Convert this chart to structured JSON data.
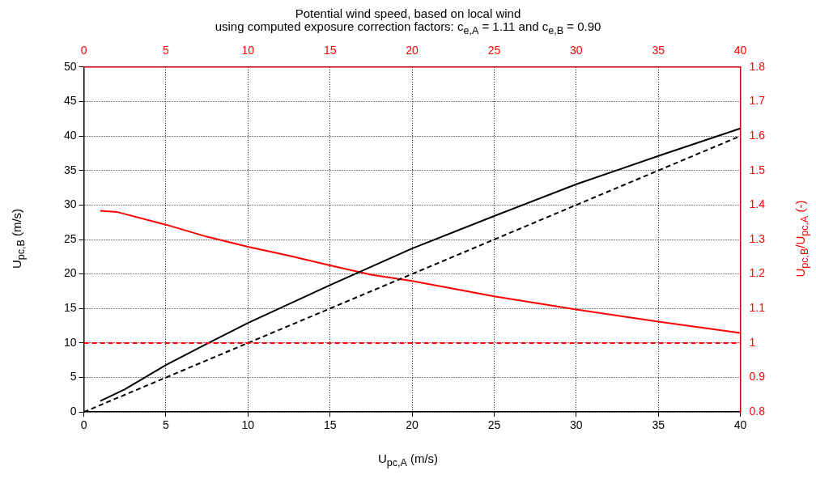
{
  "chart_data": {
    "type": "line",
    "title": "Potential wind speed, based on local wind",
    "subtitle": "using computed exposure correction factors: c$_{e,A}$ = 1.11 and c$_{e,B}$ = 0.90",
    "xlabel": "U$_{pc,A}$ (m/s)",
    "ylabel": "U$_{pc,B}$ (m/s)",
    "y2label": "U$_{pc,B}$/U$_{pc,A}$ (-)",
    "xlim": [
      0,
      40
    ],
    "xticks": [
      0,
      5,
      10,
      15,
      20,
      25,
      30,
      35,
      40
    ],
    "x2lim": [
      0,
      40
    ],
    "x2ticks": [
      0,
      5,
      10,
      15,
      20,
      25,
      30,
      35,
      40
    ],
    "ylim": [
      0,
      50
    ],
    "yticks": [
      0,
      5,
      10,
      15,
      20,
      25,
      30,
      35,
      40,
      45,
      50
    ],
    "y2lim": [
      0.8,
      1.8
    ],
    "y2ticks": [
      0.8,
      0.9,
      1,
      1.1,
      1.2,
      1.3,
      1.4,
      1.5,
      1.6,
      1.7,
      1.8
    ],
    "grid": true,
    "marker": "none",
    "series": [
      {
        "color": "#000000",
        "x": [
          1,
          2.5,
          5,
          7.5,
          10,
          15,
          20,
          25,
          30,
          35,
          40
        ],
        "values": [
          1.6,
          3.3,
          6.8,
          9.9,
          12.9,
          18.4,
          23.7,
          28.4,
          33.0,
          37.1,
          41.1
        ]
      },
      {
        "color": "#000000",
        "line_style": "dashed",
        "x": [
          0,
          40
        ],
        "values": [
          0,
          40
        ]
      },
      {
        "color": "#ff0000",
        "axis": "y2",
        "x": [
          1,
          2,
          5,
          7.5,
          10,
          12.5,
          15,
          17.5,
          20,
          25,
          30,
          35,
          40
        ],
        "values": [
          1.383,
          1.38,
          1.343,
          1.308,
          1.279,
          1.253,
          1.225,
          1.198,
          1.18,
          1.135,
          1.097,
          1.062,
          1.029
        ]
      }
    ],
    "ref_lines": [
      {
        "axis": "y2",
        "value": 1,
        "color": "#ff0000",
        "line_style": "dashed"
      }
    ]
  }
}
